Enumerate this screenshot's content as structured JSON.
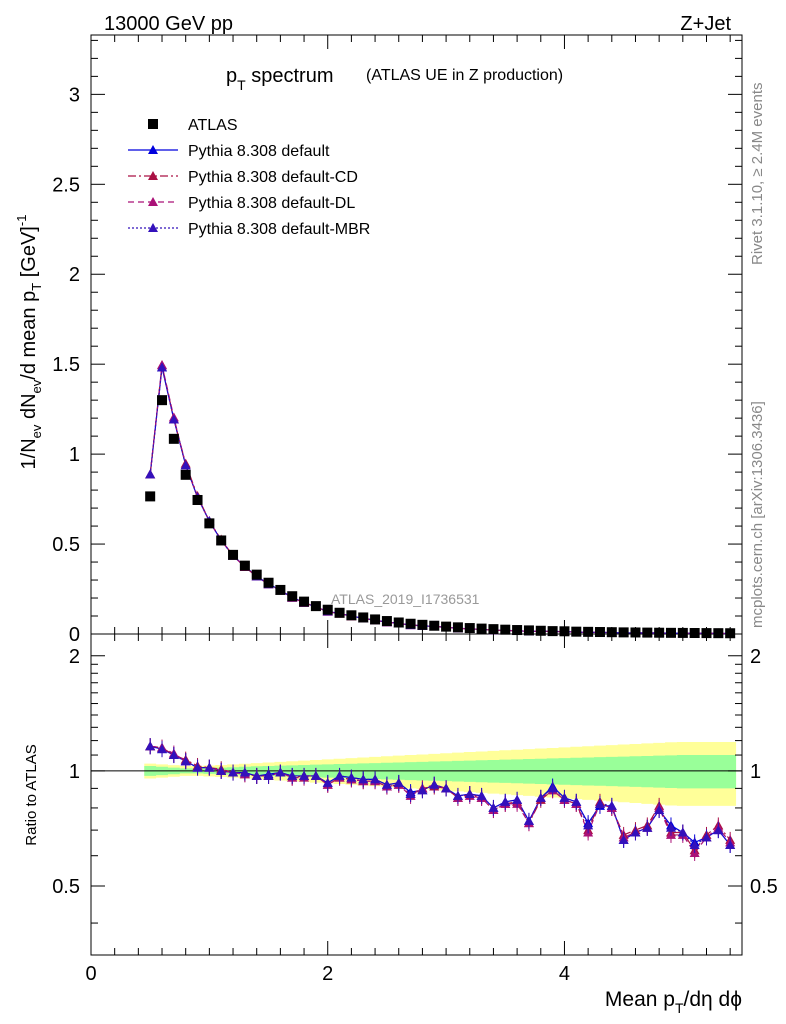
{
  "header": {
    "left": "13000 GeV pp",
    "right": "Z+Jet"
  },
  "title": {
    "main": "p",
    "main_sub": "T",
    "main_rest": " spectrum",
    "suffix": "(ATLAS UE in Z production)"
  },
  "side_labels": {
    "rivet": "Rivet 3.1.10, ≥ 2.4M events",
    "mcplots": "mcplots.cern.ch [arXiv:1306.3436]"
  },
  "watermark": "ATLAS_2019_I1736531",
  "axes": {
    "top_ylabel": {
      "p1": "1/N",
      "s1": "ev",
      "p2": " dN",
      "s2": "ev",
      "p3": "/d mean p",
      "s3": "T",
      "p4": " [GeV]",
      "sup": "-1"
    },
    "bottom_ylabel": "Ratio to ATLAS",
    "xlabel": {
      "p1": "Mean p",
      "s1": "T",
      "p2": "/dη dϕ"
    },
    "top_yticks": [
      "0",
      "0.5",
      "1",
      "1.5",
      "2",
      "2.5",
      "3"
    ],
    "bottom_yticks_left": [
      "0.5",
      "1",
      "2"
    ],
    "bottom_yticks_right": [
      "0.5",
      "1",
      "2"
    ],
    "xticks": [
      "0",
      "2",
      "4"
    ]
  },
  "legend": [
    {
      "label": "ATLAS",
      "color": "#000000",
      "marker": "square",
      "line": "none"
    },
    {
      "label": "Pythia 8.308 default",
      "color": "#0000dd",
      "marker": "triangle",
      "line": "solid"
    },
    {
      "label": "Pythia 8.308 default-CD",
      "color": "#aa1144",
      "marker": "triangle",
      "line": "dashdot"
    },
    {
      "label": "Pythia 8.308 default-DL",
      "color": "#aa1177",
      "marker": "triangle",
      "line": "dashed"
    },
    {
      "label": "Pythia 8.308 default-MBR",
      "color": "#3311bb",
      "marker": "triangle",
      "line": "dotted"
    }
  ],
  "chart_data": {
    "type": "line",
    "xlim": [
      0,
      5.5
    ],
    "top_ylim": [
      0,
      3.33
    ],
    "ratio_ylim": [
      0.33,
      2.28
    ],
    "ratio_scale": "log",
    "x": [
      0.5,
      0.6,
      0.7,
      0.8,
      0.9,
      1.0,
      1.1,
      1.2,
      1.3,
      1.4,
      1.5,
      1.6,
      1.7,
      1.8,
      1.9,
      2.0,
      2.1,
      2.2,
      2.3,
      2.4,
      2.5,
      2.6,
      2.7,
      2.8,
      2.9,
      3.0,
      3.1,
      3.2,
      3.3,
      3.4,
      3.5,
      3.6,
      3.7,
      3.8,
      3.9,
      4.0,
      4.1,
      4.2,
      4.3,
      4.4,
      4.5,
      4.6,
      4.7,
      4.8,
      4.9,
      5.0,
      5.1,
      5.2,
      5.3,
      5.4
    ],
    "data": [
      0.765,
      1.3,
      1.085,
      0.885,
      0.745,
      0.615,
      0.52,
      0.44,
      0.38,
      0.33,
      0.285,
      0.245,
      0.21,
      0.18,
      0.155,
      0.135,
      0.118,
      0.104,
      0.092,
      0.081,
      0.072,
      0.064,
      0.057,
      0.051,
      0.046,
      0.041,
      0.037,
      0.033,
      0.03,
      0.027,
      0.024,
      0.022,
      0.02,
      0.018,
      0.016,
      0.015,
      0.013,
      0.012,
      0.011,
      0.01,
      0.009,
      0.0085,
      0.0078,
      0.0071,
      0.0065,
      0.006,
      0.0055,
      0.005,
      0.0046,
      0.0042
    ],
    "mc_band_inner": [
      0.03,
      0.025,
      0.02,
      0.015,
      0.015,
      0.018,
      0.02,
      0.022,
      0.025,
      0.028,
      0.03,
      0.032,
      0.034,
      0.036,
      0.038,
      0.04,
      0.042,
      0.044,
      0.046,
      0.048,
      0.05,
      0.052,
      0.054,
      0.056,
      0.058,
      0.06,
      0.062,
      0.064,
      0.066,
      0.068,
      0.07,
      0.072,
      0.074,
      0.076,
      0.078,
      0.08,
      0.082,
      0.084,
      0.086,
      0.088,
      0.09,
      0.092,
      0.094,
      0.096,
      0.098,
      0.1,
      0.1,
      0.1,
      0.1,
      0.1
    ],
    "mc_band_outer": [
      0.045,
      0.04,
      0.035,
      0.03,
      0.03,
      0.033,
      0.036,
      0.04,
      0.044,
      0.048,
      0.052,
      0.056,
      0.06,
      0.064,
      0.068,
      0.072,
      0.076,
      0.08,
      0.084,
      0.088,
      0.092,
      0.096,
      0.1,
      0.104,
      0.108,
      0.112,
      0.116,
      0.12,
      0.124,
      0.128,
      0.132,
      0.136,
      0.14,
      0.144,
      0.148,
      0.152,
      0.156,
      0.16,
      0.164,
      0.168,
      0.172,
      0.176,
      0.18,
      0.184,
      0.188,
      0.19,
      0.19,
      0.19,
      0.19,
      0.19
    ],
    "series": [
      {
        "name": "Pythia 8.308 default",
        "color": "#0000dd",
        "dash": "",
        "ratio": [
          1.16,
          1.14,
          1.1,
          1.06,
          1.02,
          1.02,
          1.0,
          0.99,
          0.99,
          0.97,
          0.98,
          0.99,
          0.97,
          0.97,
          0.97,
          0.93,
          0.97,
          0.96,
          0.95,
          0.95,
          0.92,
          0.93,
          0.88,
          0.89,
          0.92,
          0.9,
          0.86,
          0.87,
          0.86,
          0.8,
          0.83,
          0.84,
          0.74,
          0.85,
          0.91,
          0.85,
          0.83,
          0.73,
          0.81,
          0.81,
          0.66,
          0.69,
          0.71,
          0.79,
          0.72,
          0.69,
          0.65,
          0.67,
          0.7,
          0.64
        ]
      },
      {
        "name": "Pythia 8.308 default-CD",
        "color": "#aa1144",
        "dash": "8,3,2,3",
        "ratio": [
          1.16,
          1.15,
          1.1,
          1.07,
          1.03,
          1.02,
          1.01,
          0.99,
          0.98,
          0.97,
          0.97,
          0.99,
          0.96,
          0.97,
          0.97,
          0.92,
          0.96,
          0.95,
          0.94,
          0.94,
          0.91,
          0.92,
          0.87,
          0.9,
          0.91,
          0.9,
          0.85,
          0.87,
          0.85,
          0.79,
          0.82,
          0.83,
          0.73,
          0.84,
          0.89,
          0.84,
          0.82,
          0.7,
          0.83,
          0.8,
          0.68,
          0.7,
          0.72,
          0.81,
          0.69,
          0.69,
          0.62,
          0.68,
          0.72,
          0.66
        ]
      },
      {
        "name": "Pythia 8.308 default-DL",
        "color": "#aa1177",
        "dash": "6,4",
        "ratio": [
          1.16,
          1.15,
          1.11,
          1.06,
          1.02,
          1.02,
          1.0,
          0.99,
          0.98,
          0.97,
          0.97,
          0.99,
          0.96,
          0.96,
          0.97,
          0.92,
          0.96,
          0.95,
          0.94,
          0.94,
          0.91,
          0.92,
          0.86,
          0.9,
          0.92,
          0.9,
          0.85,
          0.86,
          0.85,
          0.79,
          0.82,
          0.82,
          0.73,
          0.85,
          0.89,
          0.84,
          0.82,
          0.69,
          0.82,
          0.8,
          0.67,
          0.69,
          0.71,
          0.8,
          0.68,
          0.68,
          0.61,
          0.67,
          0.71,
          0.65
        ]
      },
      {
        "name": "Pythia 8.308 default-MBR",
        "color": "#3311bb",
        "dash": "2,2",
        "ratio": [
          1.16,
          1.14,
          1.1,
          1.06,
          1.02,
          1.02,
          1.0,
          0.99,
          0.99,
          0.97,
          0.97,
          0.99,
          0.97,
          0.97,
          0.97,
          0.93,
          0.97,
          0.96,
          0.95,
          0.95,
          0.92,
          0.93,
          0.87,
          0.89,
          0.92,
          0.9,
          0.86,
          0.87,
          0.86,
          0.8,
          0.83,
          0.84,
          0.74,
          0.85,
          0.9,
          0.85,
          0.83,
          0.72,
          0.82,
          0.81,
          0.66,
          0.69,
          0.71,
          0.79,
          0.71,
          0.69,
          0.64,
          0.67,
          0.7,
          0.64
        ]
      }
    ]
  }
}
